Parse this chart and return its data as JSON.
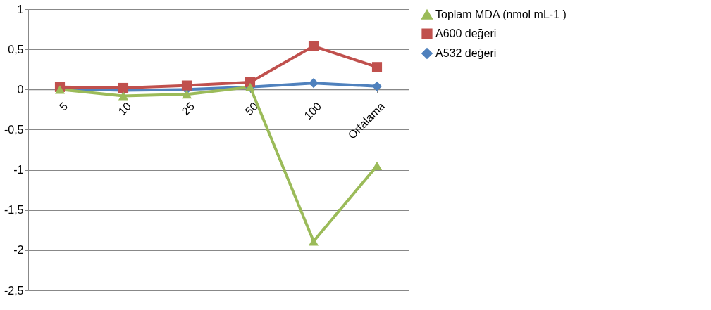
{
  "chart_data": {
    "type": "line",
    "categories": [
      "5",
      "10",
      "25",
      "50",
      "100",
      "Ortalama"
    ],
    "series": [
      {
        "name": "Toplam MDA (nmol mL-1 )",
        "color": "#9bbb59",
        "marker": "triangle",
        "values": [
          0.0,
          -0.08,
          -0.06,
          0.03,
          -1.89,
          -0.95
        ]
      },
      {
        "name": "A600 değeri",
        "color": "#c0504d",
        "marker": "square",
        "values": [
          0.03,
          0.02,
          0.05,
          0.09,
          0.54,
          0.28
        ]
      },
      {
        "name": "A532 değeri",
        "color": "#4f81bd",
        "marker": "diamond",
        "values": [
          0.01,
          -0.01,
          0.0,
          0.03,
          0.08,
          0.04
        ]
      }
    ],
    "ylim": [
      -2.5,
      1
    ],
    "yticks": [
      {
        "value": -2.5,
        "label": "-2,5"
      },
      -2,
      {
        "value": -1.5,
        "label": "-1,5"
      },
      -1,
      {
        "value": -0.5,
        "label": "-0,5"
      },
      0,
      {
        "value": 0.5,
        "label": "0,5"
      },
      1
    ],
    "grid": "y",
    "legend": "right"
  }
}
